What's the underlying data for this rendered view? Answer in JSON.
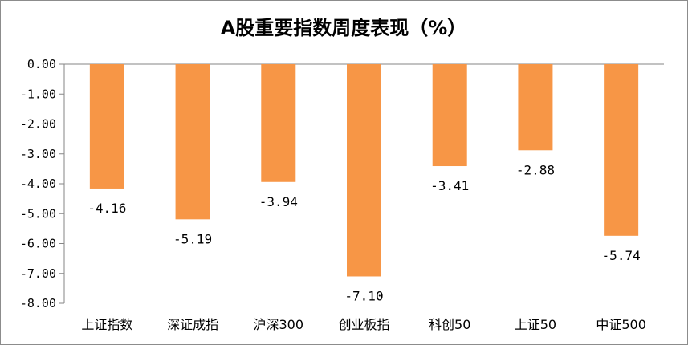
{
  "chart_data": {
    "type": "bar",
    "title": "A股重要指数周度表现（%）",
    "categories": [
      "上证指数",
      "深证成指",
      "沪深300",
      "创业板指",
      "科创50",
      "上证50",
      "中证500"
    ],
    "values": [
      -4.16,
      -5.19,
      -3.94,
      -7.1,
      -3.41,
      -2.88,
      -5.74
    ],
    "value_labels": [
      "-4.16",
      "-5.19",
      "-3.94",
      "-7.10",
      "-3.41",
      "-2.88",
      "-5.74"
    ],
    "y_ticks": [
      "0.00",
      "-1.00",
      "-2.00",
      "-3.00",
      "-4.00",
      "-5.00",
      "-6.00",
      "-7.00",
      "-8.00"
    ],
    "ylim": [
      -8,
      0
    ],
    "grid": false,
    "legend": "none",
    "bar_color": "#F79646"
  }
}
